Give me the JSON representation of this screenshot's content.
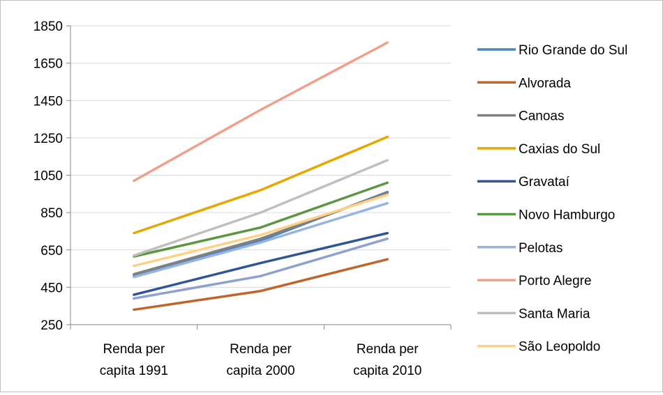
{
  "chart_data": {
    "type": "line",
    "title": "",
    "xlabel": "",
    "ylabel": "",
    "categories": [
      [
        "Renda per",
        "capita 1991"
      ],
      [
        "Renda per",
        "capita 2000"
      ],
      [
        "Renda per",
        "capita 2010"
      ]
    ],
    "ylim": [
      250,
      1850
    ],
    "yticks": [
      250,
      450,
      650,
      850,
      1050,
      1250,
      1450,
      1650,
      1850
    ],
    "grid": true,
    "legend_position": "right",
    "series": [
      {
        "name": "Rio Grande do Sul",
        "color": "#4F81BD",
        "values": [
          510,
          700,
          960
        ]
      },
      {
        "name": "Alvorada",
        "color": "#C0652A",
        "values": [
          330,
          430,
          600
        ]
      },
      {
        "name": "Canoas",
        "color": "#808080",
        "values": [
          520,
          710,
          955
        ]
      },
      {
        "name": "Caxias do Sul",
        "color": "#E6A800",
        "values": [
          740,
          970,
          1255
        ]
      },
      {
        "name": "Gravataí",
        "color": "#2F5597",
        "values": [
          410,
          580,
          740
        ]
      },
      {
        "name": "Novo Hamburgo",
        "color": "#5B9642",
        "values": [
          615,
          770,
          1010
        ]
      },
      {
        "name": "Pelotas",
        "color": "#95B5E0",
        "values": [
          505,
          690,
          900
        ]
      },
      {
        "name": "Porto Alegre",
        "color": "#F0A08A",
        "values": [
          1020,
          1400,
          1760
        ]
      },
      {
        "name": "Santa Maria",
        "color": "#BFBFBF",
        "values": [
          620,
          850,
          1130
        ]
      },
      {
        "name": "São Leopoldo",
        "color": "#FFD283",
        "values": [
          565,
          730,
          945
        ]
      },
      {
        "name": "",
        "color": "#8EA0CF",
        "values": [
          390,
          510,
          710
        ]
      }
    ]
  }
}
